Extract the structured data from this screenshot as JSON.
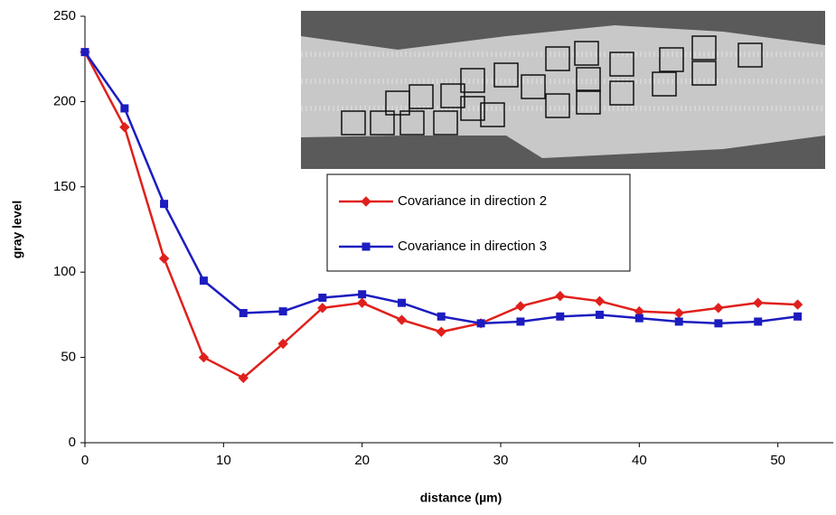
{
  "chart_data": {
    "type": "line",
    "xlabel": "distance (µm)",
    "ylabel": "gray level",
    "x": [
      0,
      2.86,
      5.71,
      8.57,
      11.43,
      14.29,
      17.14,
      20,
      22.86,
      25.71,
      28.57,
      31.43,
      34.29,
      37.14,
      40,
      42.86,
      45.71,
      48.57,
      51.43
    ],
    "series": [
      {
        "name": "Covariance in direction 2",
        "color": "#e0201c",
        "marker": "diamond",
        "values": [
          229,
          185,
          108,
          50,
          38,
          58,
          79,
          82,
          72,
          65,
          70,
          80,
          86,
          83,
          77,
          76,
          79,
          82,
          81
        ]
      },
      {
        "name": "Covariance in direction 3",
        "color": "#1c1cc0",
        "marker": "square",
        "values": [
          229,
          196,
          140,
          95,
          76,
          77,
          85,
          87,
          82,
          74,
          70,
          71,
          74,
          75,
          73,
          71,
          70,
          71,
          74
        ]
      }
    ],
    "xlim": [
      0,
      54
    ],
    "ylim": [
      0,
      250
    ],
    "xticks": [
      0,
      10,
      20,
      30,
      40,
      50
    ],
    "yticks": [
      0,
      50,
      100,
      150,
      200,
      250
    ]
  }
}
